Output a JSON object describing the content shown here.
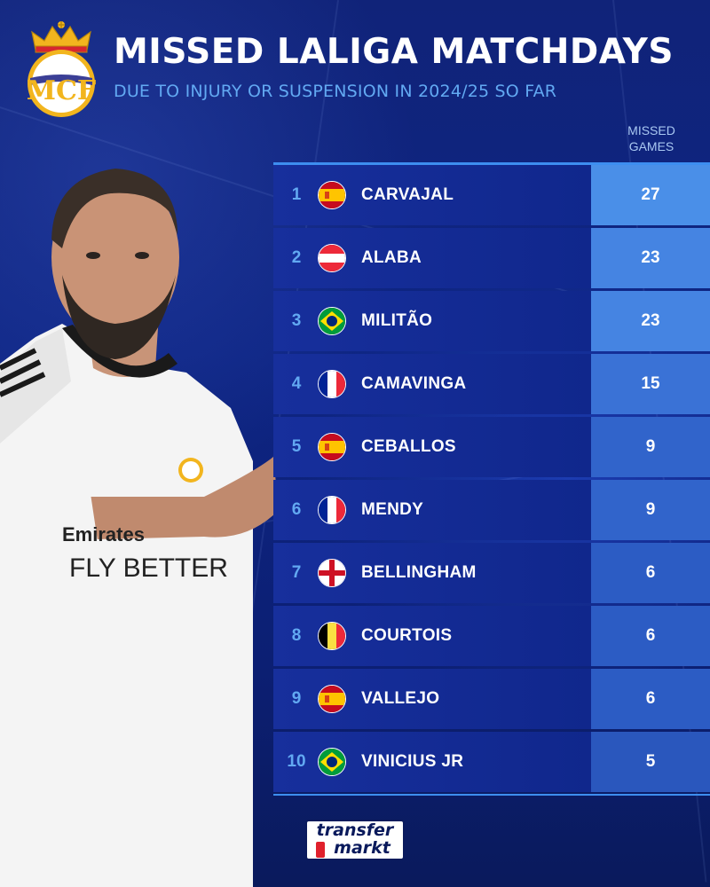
{
  "header": {
    "title": "MISSED LALIGA MATCHDAYS",
    "subtitle": "DUE TO INJURY OR SUSPENSION IN 2024/25 SO FAR",
    "column_header_line1": "MISSED",
    "column_header_line2": "GAMES"
  },
  "rows": [
    {
      "rank": "1",
      "name": "CARVAJAL",
      "value": "27",
      "flag": "spain",
      "value_bg": "#4a8fe8"
    },
    {
      "rank": "2",
      "name": "ALABA",
      "value": "23",
      "flag": "austria",
      "value_bg": "#4584e2"
    },
    {
      "rank": "3",
      "name": "MILITÃO",
      "value": "23",
      "flag": "brazil",
      "value_bg": "#4584e2"
    },
    {
      "rank": "4",
      "name": "CAMAVINGA",
      "value": "15",
      "flag": "france",
      "value_bg": "#3a72d6"
    },
    {
      "rank": "5",
      "name": "CEBALLOS",
      "value": "9",
      "flag": "spain",
      "value_bg": "#3164cb"
    },
    {
      "rank": "6",
      "name": "MENDY",
      "value": "9",
      "flag": "france",
      "value_bg": "#3164cb"
    },
    {
      "rank": "7",
      "name": "BELLINGHAM",
      "value": "6",
      "flag": "england",
      "value_bg": "#2c5cc4"
    },
    {
      "rank": "8",
      "name": "COURTOIS",
      "value": "6",
      "flag": "belgium",
      "value_bg": "#2c5cc4"
    },
    {
      "rank": "9",
      "name": "VALLEJO",
      "value": "6",
      "flag": "spain",
      "value_bg": "#2c5cc4"
    },
    {
      "rank": "10",
      "name": "VINICIUS JR",
      "value": "5",
      "flag": "brazil",
      "value_bg": "#2a57bd"
    }
  ],
  "player_shirt": {
    "sponsor_line1": "Emirates",
    "sponsor_line2": "FLY BETTER"
  },
  "logo": {
    "line1": "transfer",
    "line2": "markt"
  },
  "colors": {
    "accent_blue": "#62a9f2",
    "background": "#0e2583"
  }
}
